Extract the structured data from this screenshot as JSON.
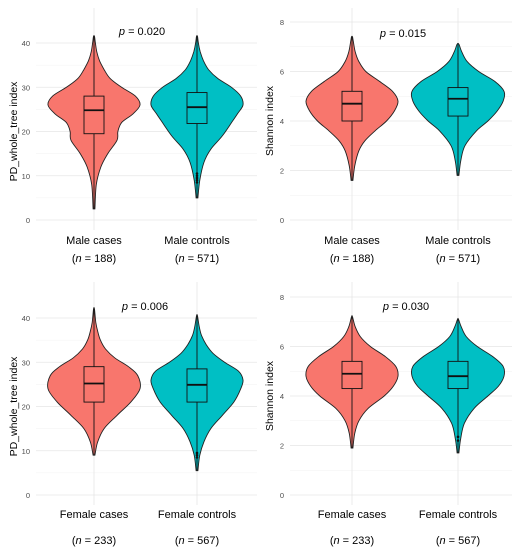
{
  "chart_data": [
    {
      "type": "violin",
      "ylabel": "PD_whole_tree index",
      "ylim": [
        0,
        42
      ],
      "yticks": [
        0,
        10,
        20,
        30,
        40
      ],
      "annotation": {
        "prefix": "p",
        "text": " = 0.020"
      },
      "groups": [
        {
          "label": "Male cases",
          "n_label": "(n = 188)",
          "n_prefix": "n",
          "n_text": " = 188)",
          "color": "#F8766D",
          "min": 2.5,
          "q1": 19.5,
          "median": 24.8,
          "q3": 28.0,
          "max": 41.5,
          "outliers": [],
          "density": [
            [
              2.5,
              0.02
            ],
            [
              8,
              0.05
            ],
            [
              12,
              0.15
            ],
            [
              15,
              0.3
            ],
            [
              18,
              0.5
            ],
            [
              20,
              0.52
            ],
            [
              22,
              0.6
            ],
            [
              24,
              0.85
            ],
            [
              26,
              1.0
            ],
            [
              28,
              0.9
            ],
            [
              30,
              0.6
            ],
            [
              32,
              0.35
            ],
            [
              34,
              0.22
            ],
            [
              36,
              0.12
            ],
            [
              38,
              0.06
            ],
            [
              40,
              0.03
            ],
            [
              41.5,
              0.01
            ]
          ]
        },
        {
          "label": "Male controls",
          "n_label": "(n = 571)",
          "n_prefix": "n",
          "n_text": " = 571)",
          "color": "#00BFC4",
          "min": 5,
          "q1": 21.8,
          "median": 25.5,
          "q3": 28.8,
          "max": 41.5,
          "outliers": [
            8.5,
            9,
            9.5,
            10,
            10.5
          ],
          "density": [
            [
              5,
              0.02
            ],
            [
              9,
              0.06
            ],
            [
              13,
              0.15
            ],
            [
              16,
              0.3
            ],
            [
              19,
              0.55
            ],
            [
              22,
              0.75
            ],
            [
              24,
              0.88
            ],
            [
              26,
              1.0
            ],
            [
              28,
              0.95
            ],
            [
              30,
              0.75
            ],
            [
              32,
              0.45
            ],
            [
              34,
              0.25
            ],
            [
              36,
              0.14
            ],
            [
              38,
              0.07
            ],
            [
              40,
              0.03
            ],
            [
              41.5,
              0.01
            ]
          ]
        }
      ]
    },
    {
      "type": "violin",
      "ylabel": "Shannon index",
      "ylim": [
        0,
        8
      ],
      "yticks": [
        0,
        2,
        4,
        6,
        8
      ],
      "annotation": {
        "prefix": "p",
        "text": " = 0.015"
      },
      "groups": [
        {
          "label": "Male cases",
          "n_label": "(n = 188)",
          "n_prefix": "n",
          "n_text": " = 188)",
          "color": "#F8766D",
          "min": 1.6,
          "q1": 4.0,
          "median": 4.7,
          "q3": 5.2,
          "max": 7.4,
          "outliers": [],
          "density": [
            [
              1.6,
              0.02
            ],
            [
              2.2,
              0.06
            ],
            [
              2.8,
              0.15
            ],
            [
              3.2,
              0.28
            ],
            [
              3.6,
              0.5
            ],
            [
              4.0,
              0.75
            ],
            [
              4.4,
              0.92
            ],
            [
              4.8,
              1.0
            ],
            [
              5.2,
              0.88
            ],
            [
              5.6,
              0.6
            ],
            [
              6.0,
              0.3
            ],
            [
              6.4,
              0.15
            ],
            [
              6.8,
              0.07
            ],
            [
              7.2,
              0.03
            ],
            [
              7.4,
              0.01
            ]
          ]
        },
        {
          "label": "Male controls",
          "n_label": "(n = 571)",
          "n_prefix": "n",
          "n_text": " = 571)",
          "color": "#00BFC4",
          "min": 1.8,
          "q1": 4.2,
          "median": 4.9,
          "q3": 5.35,
          "max": 7.1,
          "outliers": [],
          "density": [
            [
              1.8,
              0.02
            ],
            [
              2.4,
              0.06
            ],
            [
              3.0,
              0.15
            ],
            [
              3.6,
              0.4
            ],
            [
              4.0,
              0.65
            ],
            [
              4.4,
              0.85
            ],
            [
              4.8,
              0.98
            ],
            [
              5.2,
              1.0
            ],
            [
              5.6,
              0.8
            ],
            [
              6.0,
              0.45
            ],
            [
              6.4,
              0.2
            ],
            [
              6.8,
              0.08
            ],
            [
              7.1,
              0.02
            ]
          ]
        }
      ]
    },
    {
      "type": "violin",
      "ylabel": "PD_whole_tree index",
      "ylim": [
        0,
        42
      ],
      "yticks": [
        0,
        10,
        20,
        30,
        40
      ],
      "annotation": {
        "prefix": "p",
        "text": " = 0.006"
      },
      "groups": [
        {
          "label": "Female cases",
          "n_label": "(n = 233)",
          "n_prefix": "n",
          "n_text": " = 233)",
          "color": "#F8766D",
          "min": 9,
          "q1": 21.0,
          "median": 25.2,
          "q3": 29.0,
          "max": 42,
          "outliers": [],
          "density": [
            [
              9,
              0.02
            ],
            [
              12,
              0.08
            ],
            [
              15,
              0.22
            ],
            [
              18,
              0.5
            ],
            [
              21,
              0.8
            ],
            [
              24,
              1.0
            ],
            [
              27,
              0.95
            ],
            [
              29,
              0.75
            ],
            [
              31,
              0.45
            ],
            [
              33,
              0.25
            ],
            [
              35,
              0.14
            ],
            [
              37,
              0.08
            ],
            [
              39,
              0.04
            ],
            [
              42,
              0.01
            ]
          ]
        },
        {
          "label": "Female controls",
          "n_label": "(n = 567)",
          "n_prefix": "n",
          "n_text": " = 567)",
          "color": "#00BFC4",
          "min": 5.5,
          "q1": 21.0,
          "median": 24.9,
          "q3": 28.5,
          "max": 40.5,
          "outliers": [
            8.5,
            9,
            9.5
          ],
          "density": [
            [
              5.5,
              0.02
            ],
            [
              9,
              0.06
            ],
            [
              12,
              0.15
            ],
            [
              15,
              0.3
            ],
            [
              18,
              0.55
            ],
            [
              21,
              0.8
            ],
            [
              24,
              0.95
            ],
            [
              26,
              1.0
            ],
            [
              28,
              0.9
            ],
            [
              30,
              0.6
            ],
            [
              32,
              0.35
            ],
            [
              34,
              0.2
            ],
            [
              36,
              0.1
            ],
            [
              38,
              0.05
            ],
            [
              40.5,
              0.01
            ]
          ]
        }
      ]
    },
    {
      "type": "violin",
      "ylabel": "Shannon index",
      "ylim": [
        0,
        8
      ],
      "yticks": [
        0,
        2,
        4,
        6,
        8
      ],
      "annotation": {
        "prefix": "p",
        "text": " = 0.030"
      },
      "groups": [
        {
          "label": "Female cases",
          "n_label": "(n = 233)",
          "n_prefix": "n",
          "n_text": " = 233)",
          "color": "#F8766D",
          "min": 1.9,
          "q1": 4.3,
          "median": 4.9,
          "q3": 5.4,
          "max": 7.2,
          "outliers": [],
          "density": [
            [
              1.9,
              0.02
            ],
            [
              2.5,
              0.06
            ],
            [
              3.0,
              0.15
            ],
            [
              3.5,
              0.35
            ],
            [
              4.0,
              0.7
            ],
            [
              4.4,
              0.9
            ],
            [
              4.8,
              1.0
            ],
            [
              5.2,
              0.95
            ],
            [
              5.6,
              0.72
            ],
            [
              6.0,
              0.4
            ],
            [
              6.4,
              0.18
            ],
            [
              6.8,
              0.07
            ],
            [
              7.2,
              0.01
            ]
          ]
        },
        {
          "label": "Female controls",
          "n_label": "(n = 567)",
          "n_prefix": "n",
          "n_text": " = 567)",
          "color": "#00BFC4",
          "min": 1.7,
          "q1": 4.3,
          "median": 4.8,
          "q3": 5.4,
          "max": 7.1,
          "outliers": [
            2.2,
            2.35
          ],
          "density": [
            [
              1.7,
              0.02
            ],
            [
              2.3,
              0.06
            ],
            [
              2.9,
              0.14
            ],
            [
              3.5,
              0.35
            ],
            [
              4.0,
              0.65
            ],
            [
              4.4,
              0.88
            ],
            [
              4.8,
              1.0
            ],
            [
              5.2,
              0.98
            ],
            [
              5.6,
              0.75
            ],
            [
              6.0,
              0.42
            ],
            [
              6.4,
              0.18
            ],
            [
              6.8,
              0.07
            ],
            [
              7.1,
              0.01
            ]
          ]
        }
      ]
    }
  ]
}
